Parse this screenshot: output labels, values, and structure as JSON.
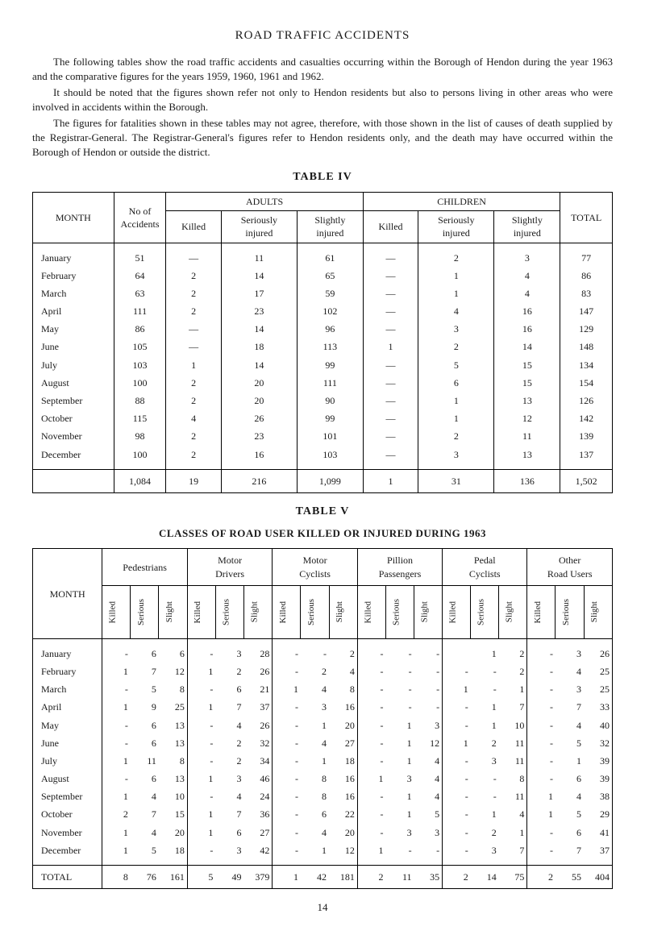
{
  "page_title": "ROAD TRAFFIC ACCIDENTS",
  "intro_paras": [
    "The following tables show the road traffic accidents and casualties occurring within the Borough of Hendon during the year 1963 and the comparative figures for the years 1959, 1960, 1961 and 1962.",
    "It should be noted that the figures shown refer not only to Hendon residents but also to persons living in other areas who were involved in accidents within the Borough.",
    "The figures for fatalities shown in these tables may not agree, therefore, with those shown in the list of causes of death supplied by the Registrar-General. The Registrar-General's figures refer to Hendon residents only, and the death may have occurred within the Borough of Hendon or outside the district."
  ],
  "table4": {
    "caption": "TABLE IV",
    "col_month": "MONTH",
    "col_accidents": "No of\nAccidents",
    "group_adults": "ADULTS",
    "group_children": "CHILDREN",
    "col_killed": "Killed",
    "col_serious": "Seriously\ninjured",
    "col_slight": "Slightly\ninjured",
    "col_total": "TOTAL",
    "rows": [
      {
        "m": "January",
        "acc": 51,
        "ak": "—",
        "as": 11,
        "al": 61,
        "ck": "—",
        "cs": 2,
        "cl": 3,
        "tot": 77
      },
      {
        "m": "February",
        "acc": 64,
        "ak": 2,
        "as": 14,
        "al": 65,
        "ck": "—",
        "cs": 1,
        "cl": 4,
        "tot": 86
      },
      {
        "m": "March",
        "acc": 63,
        "ak": 2,
        "as": 17,
        "al": 59,
        "ck": "—",
        "cs": 1,
        "cl": 4,
        "tot": 83
      },
      {
        "m": "April",
        "acc": 111,
        "ak": 2,
        "as": 23,
        "al": 102,
        "ck": "—",
        "cs": 4,
        "cl": 16,
        "tot": 147
      },
      {
        "m": "May",
        "acc": 86,
        "ak": "—",
        "as": 14,
        "al": 96,
        "ck": "—",
        "cs": 3,
        "cl": 16,
        "tot": 129
      },
      {
        "m": "June",
        "acc": 105,
        "ak": "—",
        "as": 18,
        "al": 113,
        "ck": 1,
        "cs": 2,
        "cl": 14,
        "tot": 148
      },
      {
        "m": "July",
        "acc": 103,
        "ak": 1,
        "as": 14,
        "al": 99,
        "ck": "—",
        "cs": 5,
        "cl": 15,
        "tot": 134
      },
      {
        "m": "August",
        "acc": 100,
        "ak": 2,
        "as": 20,
        "al": 111,
        "ck": "—",
        "cs": 6,
        "cl": 15,
        "tot": 154
      },
      {
        "m": "September",
        "acc": 88,
        "ak": 2,
        "as": 20,
        "al": 90,
        "ck": "—",
        "cs": 1,
        "cl": 13,
        "tot": 126
      },
      {
        "m": "October",
        "acc": 115,
        "ak": 4,
        "as": 26,
        "al": 99,
        "ck": "—",
        "cs": 1,
        "cl": 12,
        "tot": 142
      },
      {
        "m": "November",
        "acc": 98,
        "ak": 2,
        "as": 23,
        "al": 101,
        "ck": "—",
        "cs": 2,
        "cl": 11,
        "tot": 139
      },
      {
        "m": "December",
        "acc": 100,
        "ak": 2,
        "as": 16,
        "al": 103,
        "ck": "—",
        "cs": 3,
        "cl": 13,
        "tot": 137
      }
    ],
    "totals": {
      "m": "",
      "acc": "1,084",
      "ak": 19,
      "as": 216,
      "al": "1,099",
      "ck": 1,
      "cs": 31,
      "cl": 136,
      "tot": "1,502"
    }
  },
  "table5": {
    "caption": "TABLE V",
    "subtitle": "CLASSES OF ROAD USER KILLED OR INJURED DURING 1963",
    "col_month": "MONTH",
    "groups": [
      "Pedestrians",
      "Motor\nDrivers",
      "Motor\nCyclists",
      "Pillion\nPassengers",
      "Pedal\nCyclists",
      "Other\nRoad Users"
    ],
    "sub_cols": [
      "Killed",
      "Serious",
      "Slight"
    ],
    "rows": [
      {
        "m": "January",
        "v": [
          "-",
          "6",
          "6",
          "-",
          "3",
          "28",
          "-",
          "-",
          "2",
          "-",
          "-",
          "-",
          "",
          "1",
          "2",
          "-",
          "3",
          "26"
        ]
      },
      {
        "m": "February",
        "v": [
          "1",
          "7",
          "12",
          "1",
          "2",
          "26",
          "-",
          "2",
          "4",
          "-",
          "-",
          "-",
          "-",
          "-",
          "2",
          "-",
          "4",
          "25"
        ]
      },
      {
        "m": "March",
        "v": [
          "-",
          "5",
          "8",
          "-",
          "6",
          "21",
          "1",
          "4",
          "8",
          "-",
          "-",
          "-",
          "1",
          "-",
          "1",
          "-",
          "3",
          "25"
        ]
      },
      {
        "m": "April",
        "v": [
          "1",
          "9",
          "25",
          "1",
          "7",
          "37",
          "-",
          "3",
          "16",
          "-",
          "-",
          "-",
          "-",
          "1",
          "7",
          "-",
          "7",
          "33"
        ]
      },
      {
        "m": "May",
        "v": [
          "-",
          "6",
          "13",
          "-",
          "4",
          "26",
          "-",
          "1",
          "20",
          "-",
          "1",
          "3",
          "-",
          "1",
          "10",
          "-",
          "4",
          "40"
        ]
      },
      {
        "m": "June",
        "v": [
          "-",
          "6",
          "13",
          "-",
          "2",
          "32",
          "-",
          "4",
          "27",
          "-",
          "1",
          "12",
          "1",
          "2",
          "11",
          "-",
          "5",
          "32"
        ]
      },
      {
        "m": "July",
        "v": [
          "1",
          "11",
          "8",
          "-",
          "2",
          "34",
          "-",
          "1",
          "18",
          "-",
          "1",
          "4",
          "-",
          "3",
          "11",
          "-",
          "1",
          "39"
        ]
      },
      {
        "m": "August",
        "v": [
          "-",
          "6",
          "13",
          "1",
          "3",
          "46",
          "-",
          "8",
          "16",
          "1",
          "3",
          "4",
          "-",
          "-",
          "8",
          "-",
          "6",
          "39"
        ]
      },
      {
        "m": "September",
        "v": [
          "1",
          "4",
          "10",
          "-",
          "4",
          "24",
          "-",
          "8",
          "16",
          "-",
          "1",
          "4",
          "-",
          "-",
          "11",
          "1",
          "4",
          "38"
        ]
      },
      {
        "m": "October",
        "v": [
          "2",
          "7",
          "15",
          "1",
          "7",
          "36",
          "-",
          "6",
          "22",
          "-",
          "1",
          "5",
          "-",
          "1",
          "4",
          "1",
          "5",
          "29"
        ]
      },
      {
        "m": "November",
        "v": [
          "1",
          "4",
          "20",
          "1",
          "6",
          "27",
          "-",
          "4",
          "20",
          "-",
          "3",
          "3",
          "-",
          "2",
          "1",
          "-",
          "6",
          "41"
        ]
      },
      {
        "m": "December",
        "v": [
          "1",
          "5",
          "18",
          "-",
          "3",
          "42",
          "-",
          "1",
          "12",
          "1",
          "-",
          "-",
          "-",
          "3",
          "7",
          "-",
          "7",
          "37"
        ]
      }
    ],
    "total_label": "TOTAL",
    "totals": [
      "8",
      "76",
      "161",
      "5",
      "49",
      "379",
      "1",
      "42",
      "181",
      "2",
      "11",
      "35",
      "2",
      "14",
      "75",
      "2",
      "55",
      "404"
    ]
  },
  "page_number": "14"
}
